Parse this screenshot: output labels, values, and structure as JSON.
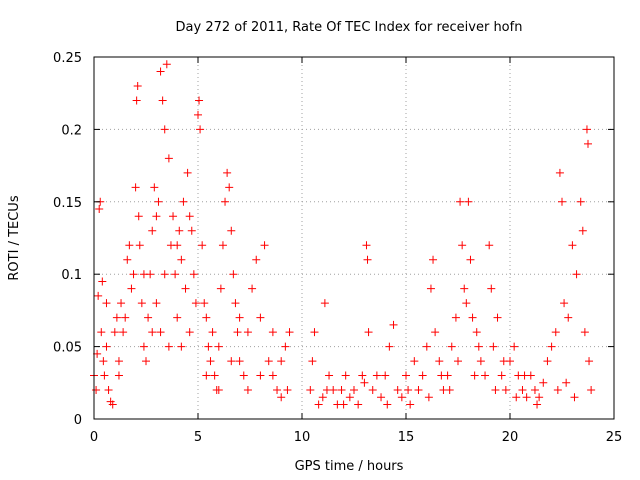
{
  "chart_data": {
    "type": "scatter",
    "title": "Day 272 of 2011, Rate Of TEC Index for receiver hofn",
    "xlabel": "GPS time / hours",
    "ylabel": "ROTI / TECUs",
    "xlim": [
      0,
      25
    ],
    "ylim": [
      0,
      0.25
    ],
    "x_ticks": [
      "0",
      "5",
      "10",
      "15",
      "20",
      "25"
    ],
    "y_ticks": [
      "0",
      "0.05",
      "0.1",
      "0.15",
      "0.2",
      "0.25"
    ],
    "grid": true,
    "marker": "+",
    "series": [
      {
        "color": "#ff0000",
        "points": [
          [
            0.0,
            0.03
          ],
          [
            0.1,
            0.02
          ],
          [
            0.15,
            0.045
          ],
          [
            0.2,
            0.085
          ],
          [
            0.25,
            0.145
          ],
          [
            0.3,
            0.15
          ],
          [
            0.35,
            0.06
          ],
          [
            0.4,
            0.095
          ],
          [
            0.45,
            0.04
          ],
          [
            0.5,
            0.03
          ],
          [
            0.6,
            0.05
          ],
          [
            0.7,
            0.02
          ],
          [
            0.8,
            0.012
          ],
          [
            0.9,
            0.01
          ],
          [
            1.0,
            0.06
          ],
          [
            1.1,
            0.07
          ],
          [
            1.2,
            0.04
          ],
          [
            1.3,
            0.08
          ],
          [
            1.4,
            0.06
          ],
          [
            1.5,
            0.07
          ],
          [
            1.6,
            0.11
          ],
          [
            1.7,
            0.12
          ],
          [
            1.8,
            0.09
          ],
          [
            1.9,
            0.1
          ],
          [
            2.0,
            0.16
          ],
          [
            2.05,
            0.22
          ],
          [
            2.1,
            0.23
          ],
          [
            2.15,
            0.14
          ],
          [
            2.2,
            0.12
          ],
          [
            2.3,
            0.08
          ],
          [
            2.4,
            0.05
          ],
          [
            2.5,
            0.04
          ],
          [
            2.6,
            0.07
          ],
          [
            2.7,
            0.1
          ],
          [
            2.8,
            0.13
          ],
          [
            2.9,
            0.16
          ],
          [
            3.0,
            0.14
          ],
          [
            3.1,
            0.15
          ],
          [
            3.2,
            0.24
          ],
          [
            3.3,
            0.22
          ],
          [
            3.4,
            0.2
          ],
          [
            3.5,
            0.245
          ],
          [
            3.6,
            0.18
          ],
          [
            3.7,
            0.12
          ],
          [
            3.8,
            0.14
          ],
          [
            3.9,
            0.1
          ],
          [
            4.0,
            0.12
          ],
          [
            4.1,
            0.13
          ],
          [
            4.2,
            0.11
          ],
          [
            4.3,
            0.15
          ],
          [
            4.4,
            0.09
          ],
          [
            4.5,
            0.17
          ],
          [
            4.6,
            0.14
          ],
          [
            4.7,
            0.13
          ],
          [
            4.8,
            0.1
          ],
          [
            4.9,
            0.08
          ],
          [
            5.0,
            0.21
          ],
          [
            5.05,
            0.22
          ],
          [
            5.1,
            0.2
          ],
          [
            5.2,
            0.12
          ],
          [
            5.3,
            0.08
          ],
          [
            5.4,
            0.07
          ],
          [
            5.5,
            0.05
          ],
          [
            5.6,
            0.04
          ],
          [
            5.7,
            0.06
          ],
          [
            5.8,
            0.03
          ],
          [
            5.9,
            0.02
          ],
          [
            6.0,
            0.05
          ],
          [
            6.1,
            0.09
          ],
          [
            6.2,
            0.12
          ],
          [
            6.3,
            0.15
          ],
          [
            6.4,
            0.17
          ],
          [
            6.5,
            0.16
          ],
          [
            6.6,
            0.13
          ],
          [
            6.7,
            0.1
          ],
          [
            6.8,
            0.08
          ],
          [
            6.9,
            0.06
          ],
          [
            7.0,
            0.04
          ],
          [
            7.2,
            0.03
          ],
          [
            7.4,
            0.06
          ],
          [
            7.6,
            0.09
          ],
          [
            7.8,
            0.11
          ],
          [
            8.0,
            0.07
          ],
          [
            8.2,
            0.12
          ],
          [
            8.4,
            0.04
          ],
          [
            8.6,
            0.03
          ],
          [
            8.8,
            0.02
          ],
          [
            9.0,
            0.04
          ],
          [
            9.2,
            0.05
          ],
          [
            9.4,
            0.06
          ],
          [
            3.0,
            0.08
          ],
          [
            3.2,
            0.06
          ],
          [
            3.4,
            0.1
          ],
          [
            3.6,
            0.05
          ],
          [
            4.0,
            0.07
          ],
          [
            4.2,
            0.05
          ],
          [
            4.6,
            0.06
          ],
          [
            5.4,
            0.03
          ],
          [
            6.0,
            0.02
          ],
          [
            6.6,
            0.04
          ],
          [
            7.0,
            0.07
          ],
          [
            7.4,
            0.02
          ],
          [
            8.0,
            0.03
          ],
          [
            8.6,
            0.06
          ],
          [
            9.0,
            0.015
          ],
          [
            9.3,
            0.02
          ],
          [
            2.4,
            0.1
          ],
          [
            2.8,
            0.06
          ],
          [
            1.2,
            0.03
          ],
          [
            0.6,
            0.08
          ],
          [
            10.4,
            0.02
          ],
          [
            10.5,
            0.04
          ],
          [
            10.6,
            0.06
          ],
          [
            10.8,
            0.01
          ],
          [
            11.0,
            0.015
          ],
          [
            11.1,
            0.08
          ],
          [
            11.3,
            0.03
          ],
          [
            11.5,
            0.02
          ],
          [
            11.7,
            0.01
          ],
          [
            11.9,
            0.02
          ],
          [
            12.1,
            0.03
          ],
          [
            12.3,
            0.015
          ],
          [
            12.5,
            0.02
          ],
          [
            12.7,
            0.01
          ],
          [
            12.9,
            0.03
          ],
          [
            13.1,
            0.12
          ],
          [
            13.15,
            0.11
          ],
          [
            13.2,
            0.06
          ],
          [
            13.4,
            0.02
          ],
          [
            13.6,
            0.03
          ],
          [
            13.8,
            0.015
          ],
          [
            14.0,
            0.03
          ],
          [
            14.2,
            0.05
          ],
          [
            14.4,
            0.065
          ],
          [
            14.6,
            0.02
          ],
          [
            14.8,
            0.015
          ],
          [
            15.0,
            0.03
          ],
          [
            15.2,
            0.01
          ],
          [
            15.4,
            0.04
          ],
          [
            15.6,
            0.02
          ],
          [
            15.8,
            0.03
          ],
          [
            16.0,
            0.05
          ],
          [
            16.2,
            0.09
          ],
          [
            16.3,
            0.11
          ],
          [
            16.4,
            0.06
          ],
          [
            16.6,
            0.04
          ],
          [
            16.8,
            0.02
          ],
          [
            17.0,
            0.03
          ],
          [
            17.2,
            0.05
          ],
          [
            17.4,
            0.07
          ],
          [
            17.6,
            0.15
          ],
          [
            17.7,
            0.12
          ],
          [
            17.8,
            0.09
          ],
          [
            17.9,
            0.08
          ],
          [
            18.0,
            0.15
          ],
          [
            18.1,
            0.11
          ],
          [
            18.2,
            0.07
          ],
          [
            18.4,
            0.06
          ],
          [
            18.6,
            0.04
          ],
          [
            18.8,
            0.03
          ],
          [
            19.0,
            0.12
          ],
          [
            19.1,
            0.09
          ],
          [
            19.2,
            0.05
          ],
          [
            19.4,
            0.07
          ],
          [
            19.6,
            0.03
          ],
          [
            19.8,
            0.02
          ],
          [
            20.0,
            0.04
          ],
          [
            20.2,
            0.05
          ],
          [
            20.4,
            0.03
          ],
          [
            20.6,
            0.02
          ],
          [
            20.8,
            0.015
          ],
          [
            21.0,
            0.03
          ],
          [
            21.2,
            0.02
          ],
          [
            21.4,
            0.015
          ],
          [
            21.6,
            0.025
          ],
          [
            21.8,
            0.04
          ],
          [
            22.0,
            0.05
          ],
          [
            22.2,
            0.06
          ],
          [
            22.4,
            0.17
          ],
          [
            22.5,
            0.15
          ],
          [
            22.6,
            0.08
          ],
          [
            22.8,
            0.07
          ],
          [
            23.0,
            0.12
          ],
          [
            23.2,
            0.1
          ],
          [
            23.4,
            0.15
          ],
          [
            23.5,
            0.13
          ],
          [
            23.6,
            0.06
          ],
          [
            23.7,
            0.2
          ],
          [
            23.75,
            0.19
          ],
          [
            23.8,
            0.04
          ],
          [
            11.2,
            0.02
          ],
          [
            12.0,
            0.01
          ],
          [
            13.0,
            0.025
          ],
          [
            14.1,
            0.01
          ],
          [
            15.1,
            0.02
          ],
          [
            16.1,
            0.015
          ],
          [
            17.1,
            0.02
          ],
          [
            18.3,
            0.03
          ],
          [
            19.3,
            0.02
          ],
          [
            20.3,
            0.015
          ],
          [
            21.3,
            0.01
          ],
          [
            22.3,
            0.02
          ],
          [
            23.1,
            0.015
          ],
          [
            23.9,
            0.02
          ],
          [
            18.5,
            0.05
          ],
          [
            17.5,
            0.04
          ],
          [
            16.7,
            0.03
          ],
          [
            19.7,
            0.04
          ],
          [
            20.7,
            0.03
          ],
          [
            22.7,
            0.025
          ]
        ]
      }
    ]
  }
}
